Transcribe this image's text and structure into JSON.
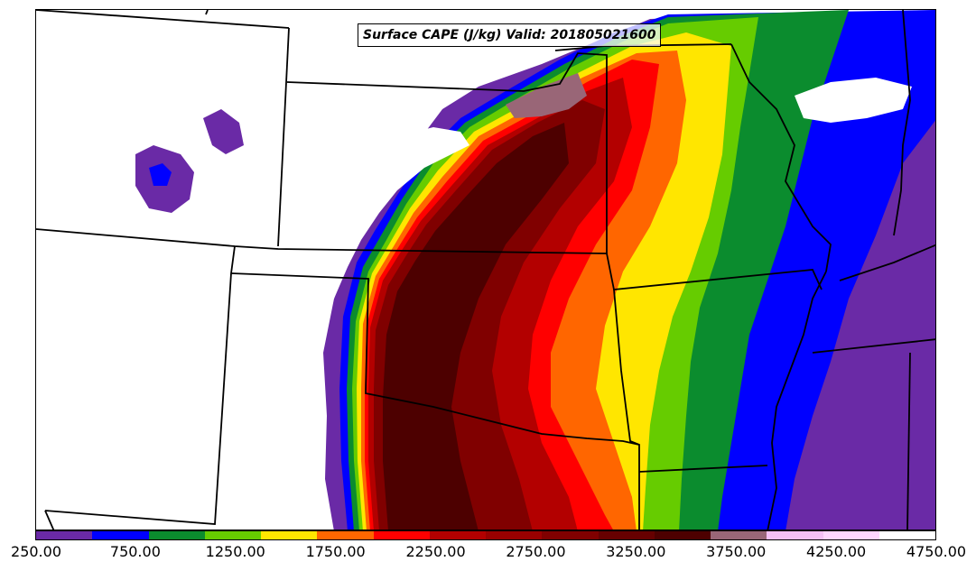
{
  "title": "Surface CAPE (J/kg) Valid: 201805021600",
  "colorbar": {
    "colors": [
      "#6a2aa6",
      "#0000ff",
      "#0b8c2e",
      "#66cc00",
      "#ffe600",
      "#ff6600",
      "#ff0000",
      "#b30000",
      "#990000",
      "#800000",
      "#660000",
      "#4d0000",
      "#996677",
      "#f5c0f5",
      "#ffd6ff",
      "#ffffff"
    ],
    "tick_labels": [
      "250.00",
      "750.00",
      "1250.00",
      "1750.00",
      "2250.00",
      "2750.00",
      "3250.00",
      "3750.00",
      "4250.00",
      "4750.00"
    ]
  }
}
